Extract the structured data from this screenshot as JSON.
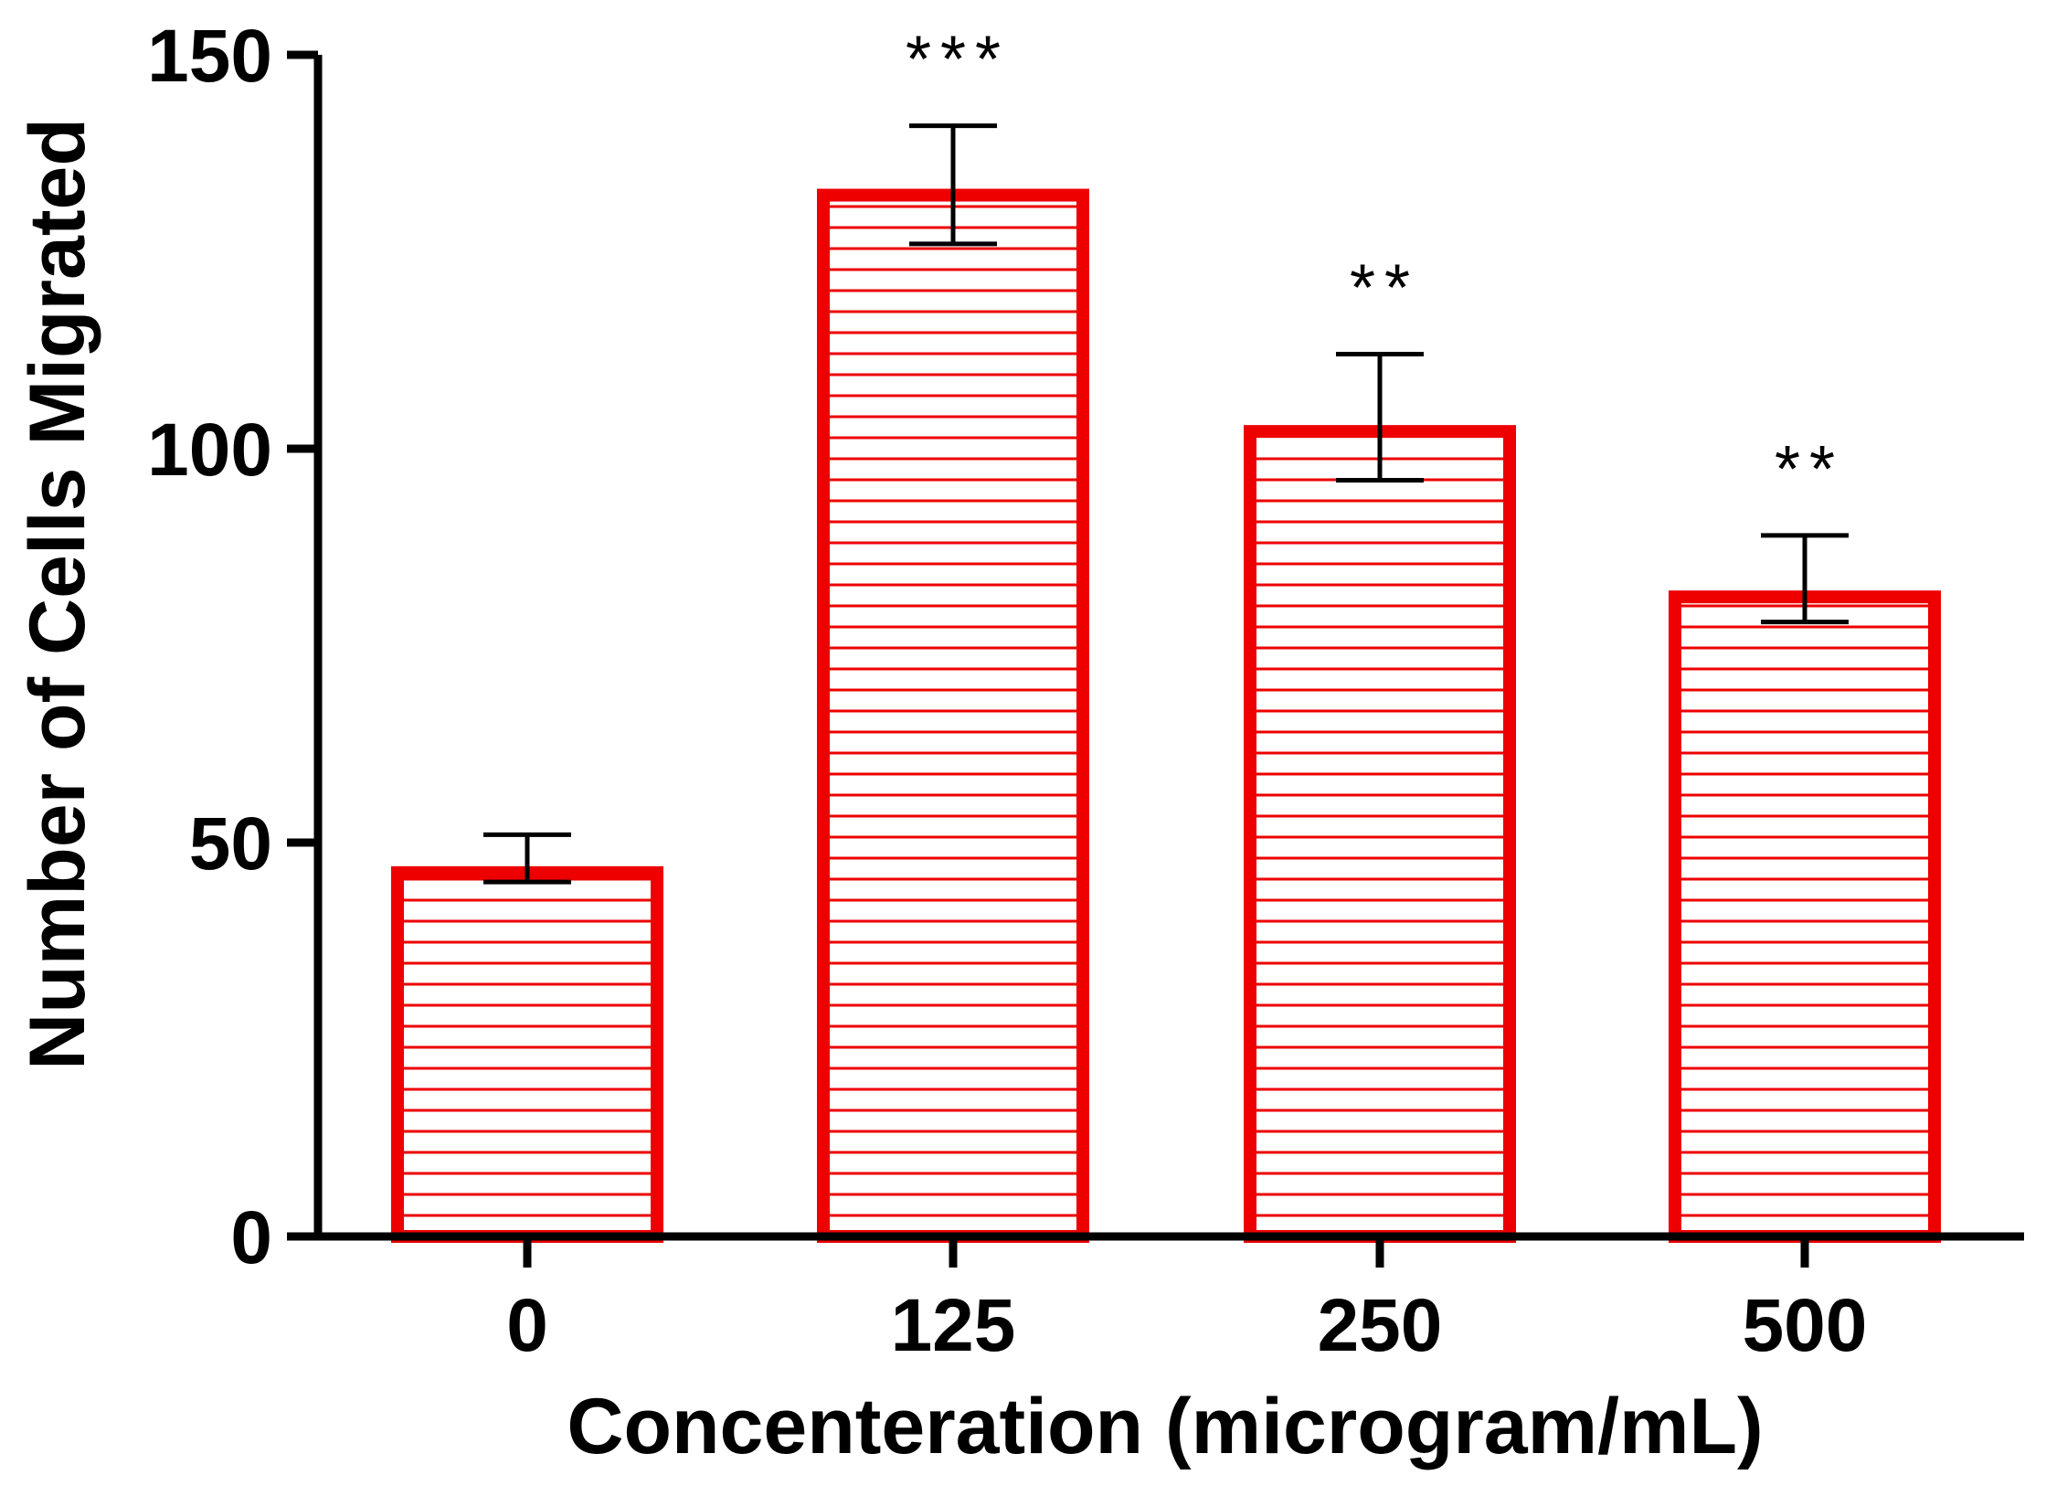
{
  "chart_data": {
    "type": "bar",
    "title": "",
    "xlabel": "Concenteration (microgram/mL)",
    "ylabel": "Number of Cells Migrated",
    "categories": [
      "0",
      "125",
      "250",
      "500"
    ],
    "values": [
      47,
      133,
      103,
      82
    ],
    "error_high": [
      51,
      141,
      112,
      89
    ],
    "error_low": [
      45,
      126,
      96,
      78
    ],
    "significance": [
      "",
      "***",
      "**",
      "**"
    ],
    "ylim": [
      0,
      150
    ],
    "yticks": [
      0,
      50,
      100,
      150
    ],
    "ytick_labels": [
      "0",
      "50",
      "100",
      "150"
    ],
    "bar_color": "#ee0000",
    "bar_fill": "#ffffff",
    "hatch": "horizontal",
    "grid": false,
    "legend": null
  }
}
